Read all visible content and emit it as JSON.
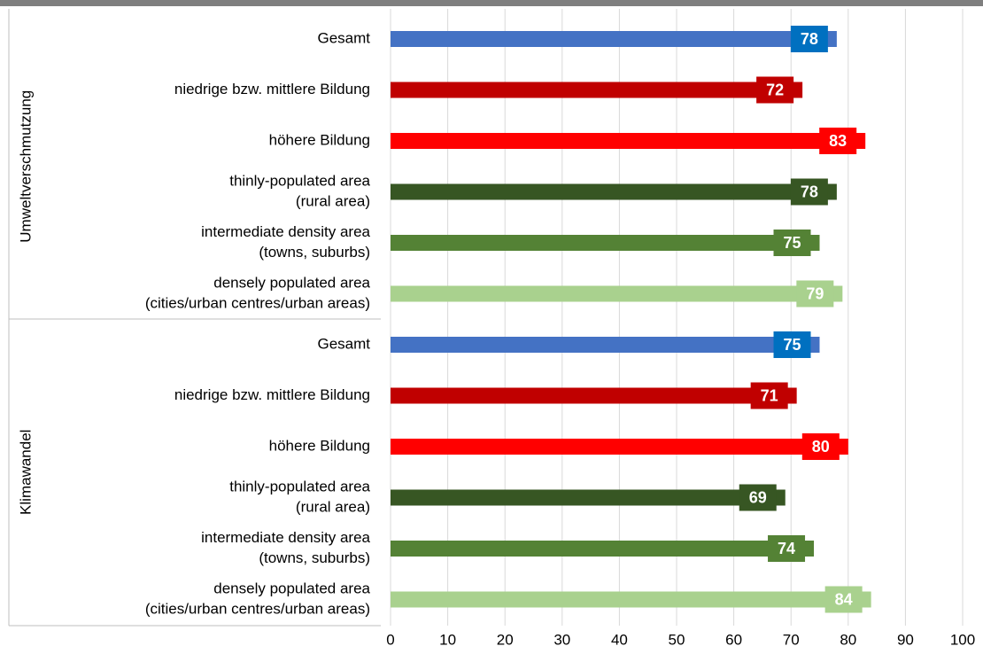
{
  "chart_data": {
    "type": "bar",
    "orientation": "horizontal",
    "groups": [
      {
        "name": "Umweltverschmutzung",
        "categories": [
          [
            "Gesamt"
          ],
          [
            "niedrige bzw. mittlere Bildung"
          ],
          [
            "höhere Bildung"
          ],
          [
            "thinly-populated area",
            "(rural area)"
          ],
          [
            "intermediate density area",
            "(towns, suburbs)"
          ],
          [
            "densely populated area",
            "(cities/urban centres/urban areas)"
          ]
        ],
        "values": [
          78,
          72,
          83,
          78,
          75,
          79
        ]
      },
      {
        "name": "Klimawandel",
        "categories": [
          [
            "Gesamt"
          ],
          [
            "niedrige bzw. mittlere Bildung"
          ],
          [
            "höhere Bildung"
          ],
          [
            "thinly-populated area",
            "(rural area)"
          ],
          [
            "intermediate density area",
            "(towns, suburbs)"
          ],
          [
            "densely populated area",
            "(cities/urban centres/urban areas)"
          ]
        ],
        "values": [
          75,
          71,
          80,
          69,
          74,
          84
        ]
      }
    ],
    "colors": [
      "#4472c4",
      "#c00000",
      "#ff0000",
      "#375623",
      "#548235",
      "#a9d18e"
    ],
    "label_colors": [
      "#0070c0",
      "#c00000",
      "#ff0000",
      "#375623",
      "#548235",
      "#a9d18e"
    ],
    "xlim": [
      0,
      100
    ],
    "xticks": [
      0,
      10,
      20,
      30,
      40,
      50,
      60,
      70,
      80,
      90,
      100
    ],
    "grid": true
  }
}
